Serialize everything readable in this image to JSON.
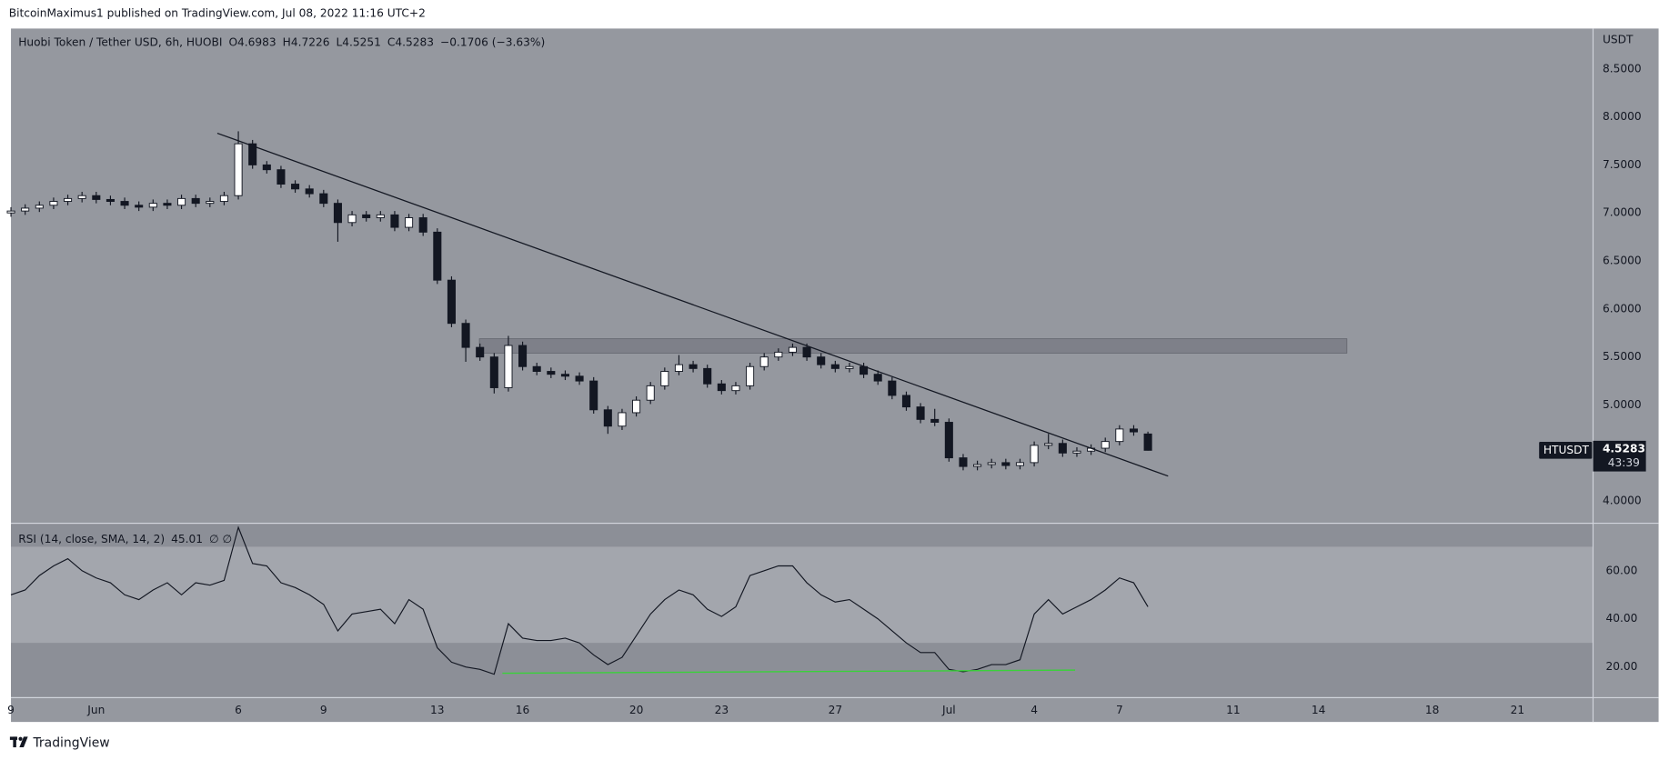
{
  "header": {
    "publisher": "BitcoinMaximus1 published on TradingView.com, Jul 08, 2022 11:16 UTC+2",
    "footer": "TradingView"
  },
  "chart_data": [
    {
      "type": "candlestick",
      "title": "Huobi Token / Tether USD, 6h, HUOBI",
      "ohlc_letters": [
        "O",
        "H",
        "L",
        "C"
      ],
      "change": "−0.1706 (−3.63%)",
      "x": [
        -2,
        -1.5,
        -1,
        -0.5,
        0,
        0.5,
        1,
        1.5,
        2,
        2.5,
        3,
        3.5,
        4,
        4.5,
        5,
        5.5,
        6,
        6.5,
        7,
        7.5,
        8,
        8.5,
        9,
        9.5,
        10,
        10.5,
        11,
        11.5,
        12,
        12.5,
        13,
        13.5,
        14,
        14.5,
        15,
        15.5,
        16,
        16.5,
        17,
        17.5,
        18,
        18.5,
        19,
        19.5,
        20,
        20.5,
        21,
        21.5,
        22,
        22.5,
        23,
        23.5,
        24,
        24.5,
        25,
        25.5,
        26,
        26.5,
        27,
        27.5,
        28,
        28.5,
        29,
        29.5,
        30,
        30.5,
        31,
        31.5,
        32,
        32.5,
        33,
        33.5,
        34,
        34.5,
        35,
        35.5,
        36,
        36.5,
        37,
        37.5,
        38
      ],
      "open": [
        7.0,
        7.02,
        7.05,
        7.08,
        7.12,
        7.15,
        7.18,
        7.14,
        7.12,
        7.08,
        7.06,
        7.1,
        7.08,
        7.15,
        7.1,
        7.12,
        7.18,
        7.72,
        7.5,
        7.45,
        7.3,
        7.25,
        7.2,
        7.1,
        6.9,
        6.98,
        6.95,
        6.98,
        6.85,
        6.95,
        6.8,
        6.3,
        5.85,
        5.6,
        5.5,
        5.18,
        5.62,
        5.4,
        5.35,
        5.32,
        5.3,
        5.25,
        4.95,
        4.78,
        4.92,
        5.05,
        5.2,
        5.35,
        5.42,
        5.38,
        5.22,
        5.15,
        5.2,
        5.4,
        5.5,
        5.55,
        5.6,
        5.5,
        5.42,
        5.38,
        5.4,
        5.32,
        5.25,
        5.1,
        4.98,
        4.85,
        4.82,
        4.45,
        4.36,
        4.38,
        4.4,
        4.37,
        4.4,
        4.58,
        4.6,
        4.5,
        4.52,
        4.55,
        4.62,
        4.75,
        4.6983
      ],
      "high": [
        7.06,
        7.09,
        7.12,
        7.16,
        7.19,
        7.22,
        7.22,
        7.18,
        7.16,
        7.12,
        7.14,
        7.14,
        7.19,
        7.19,
        7.16,
        7.22,
        7.85,
        7.76,
        7.54,
        7.49,
        7.34,
        7.29,
        7.24,
        7.14,
        7.02,
        7.02,
        7.02,
        7.02,
        6.99,
        6.99,
        6.84,
        6.34,
        5.89,
        5.64,
        5.54,
        5.72,
        5.66,
        5.44,
        5.39,
        5.36,
        5.34,
        5.29,
        4.99,
        4.96,
        5.09,
        5.24,
        5.39,
        5.52,
        5.46,
        5.42,
        5.26,
        5.24,
        5.44,
        5.54,
        5.59,
        5.64,
        5.64,
        5.54,
        5.46,
        5.44,
        5.44,
        5.36,
        5.29,
        5.14,
        5.02,
        4.96,
        4.86,
        4.49,
        4.42,
        4.44,
        4.44,
        4.44,
        4.62,
        4.7,
        4.64,
        4.56,
        4.59,
        4.66,
        4.79,
        4.79,
        4.7226
      ],
      "low": [
        6.96,
        6.98,
        7.01,
        7.04,
        7.08,
        7.11,
        7.1,
        7.08,
        7.04,
        7.02,
        7.02,
        7.04,
        7.04,
        7.06,
        7.06,
        7.08,
        7.14,
        7.46,
        7.41,
        7.26,
        7.21,
        7.16,
        7.06,
        6.7,
        6.86,
        6.91,
        6.91,
        6.81,
        6.81,
        6.76,
        6.26,
        5.81,
        5.45,
        5.46,
        5.12,
        5.14,
        5.36,
        5.31,
        5.28,
        5.26,
        5.21,
        4.91,
        4.7,
        4.74,
        4.88,
        5.01,
        5.16,
        5.31,
        5.34,
        5.18,
        5.11,
        5.11,
        5.16,
        5.36,
        5.46,
        5.51,
        5.46,
        5.38,
        5.34,
        5.34,
        5.28,
        5.21,
        5.06,
        4.94,
        4.81,
        4.78,
        4.41,
        4.32,
        4.32,
        4.34,
        4.33,
        4.33,
        4.36,
        4.54,
        4.46,
        4.46,
        4.48,
        4.51,
        4.58,
        4.68,
        4.5251
      ],
      "close": [
        7.02,
        7.05,
        7.08,
        7.12,
        7.15,
        7.18,
        7.14,
        7.12,
        7.08,
        7.06,
        7.1,
        7.08,
        7.15,
        7.1,
        7.12,
        7.18,
        7.72,
        7.5,
        7.45,
        7.3,
        7.25,
        7.2,
        7.1,
        6.9,
        6.98,
        6.95,
        6.98,
        6.85,
        6.95,
        6.8,
        6.3,
        5.85,
        5.6,
        5.5,
        5.18,
        5.62,
        5.4,
        5.35,
        5.32,
        5.3,
        5.25,
        4.95,
        4.78,
        4.92,
        5.05,
        5.2,
        5.35,
        5.42,
        5.38,
        5.22,
        5.15,
        5.2,
        5.4,
        5.5,
        5.55,
        5.6,
        5.5,
        5.42,
        5.38,
        5.4,
        5.32,
        5.25,
        5.1,
        4.98,
        4.85,
        4.82,
        4.45,
        4.36,
        4.38,
        4.4,
        4.37,
        4.4,
        4.58,
        4.6,
        4.5,
        4.52,
        4.55,
        4.62,
        4.75,
        4.72,
        4.5283
      ],
      "up_color": "#ffffff",
      "down_color": "#131722",
      "xlim": [
        -2,
        53.66
      ],
      "xticks": [
        {
          "value": -2,
          "label": "9"
        },
        {
          "value": 1,
          "label": "Jun"
        },
        6,
        9,
        13,
        16,
        20,
        23,
        27,
        {
          "value": 31,
          "label": "Jul"
        },
        {
          "value": 34,
          "label": "4"
        },
        {
          "value": 37,
          "label": "7"
        },
        {
          "value": 41,
          "label": "11"
        },
        {
          "value": 44,
          "label": "14"
        },
        {
          "value": 48,
          "label": "18"
        },
        {
          "value": 51,
          "label": "21"
        }
      ],
      "ylim": [
        3.78,
        8.92
      ],
      "yticks": [
        {
          "value": 4,
          "label": "4.0000"
        },
        {
          "value": 4.5,
          "label": "4.5000"
        },
        {
          "value": 5,
          "label": "5.0000"
        },
        {
          "value": 5.5,
          "label": "5.5000"
        },
        {
          "value": 6,
          "label": "6.0000"
        },
        {
          "value": 6.5,
          "label": "6.5000"
        },
        {
          "value": 7,
          "label": "7.0000"
        },
        {
          "value": 7.5,
          "label": "7.5000"
        },
        {
          "value": 8,
          "label": "8.0000"
        },
        {
          "value": 8.5,
          "label": "8.5000"
        }
      ],
      "y_unit": "USDT",
      "symbol": "HTUSDT",
      "countdown": "43:39",
      "trendline": {
        "x": [
          5.26,
          38.71
        ],
        "y": [
          7.83,
          4.26
        ]
      },
      "zone": {
        "x": [
          14.48,
          45.0
        ],
        "y": [
          5.54,
          5.69
        ]
      }
    },
    {
      "type": "line",
      "title": "RSI (14, close, SMA, 14, 2)",
      "extra": "∅ ∅",
      "color": "#131722",
      "x": [
        -2,
        -1.5,
        -1,
        -0.5,
        0,
        0.5,
        1,
        1.5,
        2,
        2.5,
        3,
        3.5,
        4,
        4.5,
        5,
        5.5,
        6,
        6.5,
        7,
        7.5,
        8,
        8.5,
        9,
        9.5,
        10,
        10.5,
        11,
        11.5,
        12,
        12.5,
        13,
        13.5,
        14,
        14.5,
        15,
        15.5,
        16,
        16.5,
        17,
        17.5,
        18,
        18.5,
        19,
        19.5,
        20,
        20.5,
        21,
        21.5,
        22,
        22.5,
        23,
        23.5,
        24,
        24.5,
        25,
        25.5,
        26,
        26.5,
        27,
        27.5,
        28,
        28.5,
        29,
        29.5,
        30,
        30.5,
        31,
        31.5,
        32,
        32.5,
        33,
        33.5,
        34,
        34.5,
        35,
        35.5,
        36,
        36.5,
        37,
        37.5,
        38
      ],
      "values": [
        50,
        52,
        58,
        62,
        65,
        60,
        57,
        55,
        50,
        48,
        52,
        55,
        50,
        55,
        54,
        56,
        78,
        63,
        62,
        55,
        53,
        50,
        46,
        35,
        42,
        43,
        44,
        38,
        48,
        44,
        28,
        22,
        20,
        19,
        17,
        38,
        32,
        31,
        31,
        32,
        30,
        25,
        21,
        24,
        33,
        42,
        48,
        52,
        50,
        44,
        41,
        45,
        58,
        60,
        62,
        62,
        55,
        50,
        47,
        48,
        44,
        40,
        35,
        30,
        26,
        26,
        19,
        18,
        19,
        21,
        21,
        23,
        42,
        48,
        42,
        45,
        48,
        52,
        57,
        55,
        45.01
      ],
      "ylim": [
        7.7,
        79.3
      ],
      "yticks": [
        {
          "value": 20,
          "label": "20.00"
        },
        {
          "value": 40,
          "label": "40.00"
        },
        {
          "value": 60,
          "label": "60.00"
        }
      ],
      "bands": [
        30,
        70
      ],
      "support": {
        "x": [
          15.29,
          35.44
        ],
        "y": [
          17.4,
          18.7
        ],
        "color": "#3ad13a"
      }
    }
  ]
}
